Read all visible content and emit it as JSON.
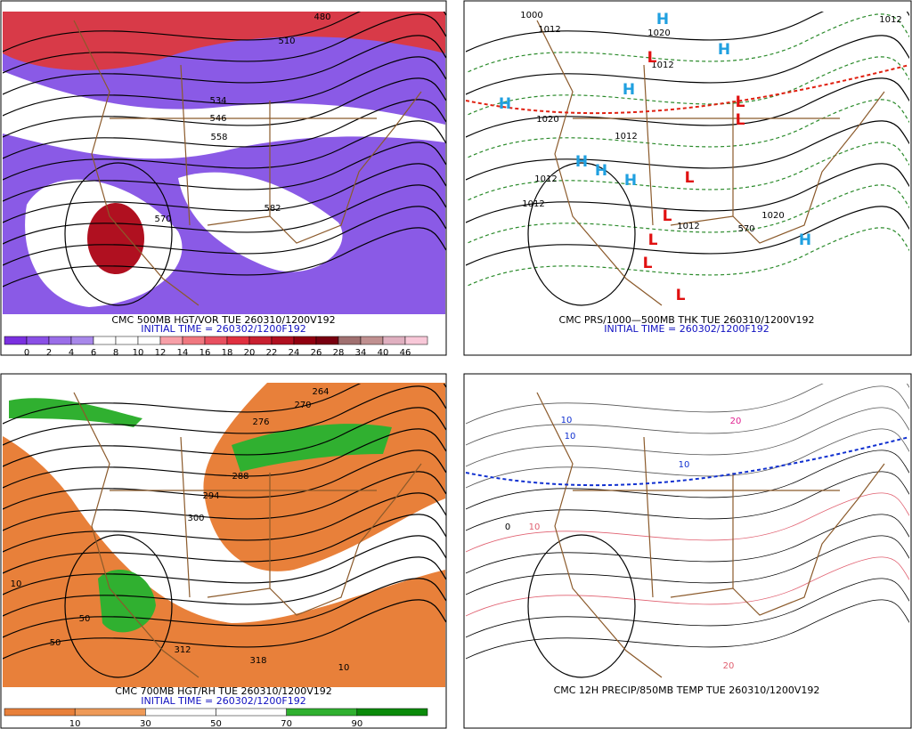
{
  "panels": [
    {
      "caption": "CMC 500MB HGT/VOR TUE 260310/1200V192",
      "initial_time": "INITIAL TIME = 260302/1200F192",
      "colorbar": {
        "labels": [
          0,
          2,
          4,
          6,
          8,
          10,
          12,
          14,
          16,
          18,
          20,
          22,
          24,
          26,
          28,
          34,
          40,
          46
        ],
        "colors": [
          "#7a30e0",
          "#8a50e6",
          "#9a6ee8",
          "#a888ea",
          "#ffffff",
          "#ffffff",
          "#ffffff",
          "#f7a0a8",
          "#f07880",
          "#e85060",
          "#e03040",
          "#c82030",
          "#b01020",
          "#900010",
          "#780010",
          "#a07070",
          "#c09090",
          "#e0b0c0",
          "#f8c8d8"
        ]
      },
      "contour_labels": [
        480,
        510,
        534,
        546,
        558,
        570,
        582
      ]
    },
    {
      "caption": "CMC PRS/1000—500MB THK TUE 260310/1200V192",
      "initial_time": "INITIAL TIME = 260302/1200F192",
      "contour_labels": [
        1000,
        1012,
        1020,
        1012,
        1020,
        1012,
        1012,
        1012,
        1012,
        1020,
        570,
        1012
      ],
      "highs": [
        "H",
        "H",
        "H",
        "H",
        "H",
        "H",
        "H",
        "H"
      ],
      "lows": [
        "L",
        "L",
        "L",
        "L",
        "L",
        "L",
        "L",
        "L"
      ]
    },
    {
      "caption": "CMC 700MB HGT/RH TUE 260310/1200V192",
      "initial_time": "INITIAL TIME = 260302/1200F192",
      "colorbar": {
        "labels": [
          10,
          30,
          50,
          70,
          90
        ],
        "colors": [
          "#e8803a",
          "#ee9a58",
          "#ffffff",
          "#ffffff",
          "#30b030",
          "#0a8a0a"
        ]
      },
      "contour_labels": [
        264,
        270,
        276,
        288,
        294,
        300,
        312,
        318,
        10,
        10,
        50,
        50
      ]
    },
    {
      "caption": "CMC 12H PRECIP/850MB TEMP TUE 260310/1200V192",
      "contour_labels": [
        20,
        10,
        10,
        10,
        0,
        10,
        20
      ]
    }
  ]
}
